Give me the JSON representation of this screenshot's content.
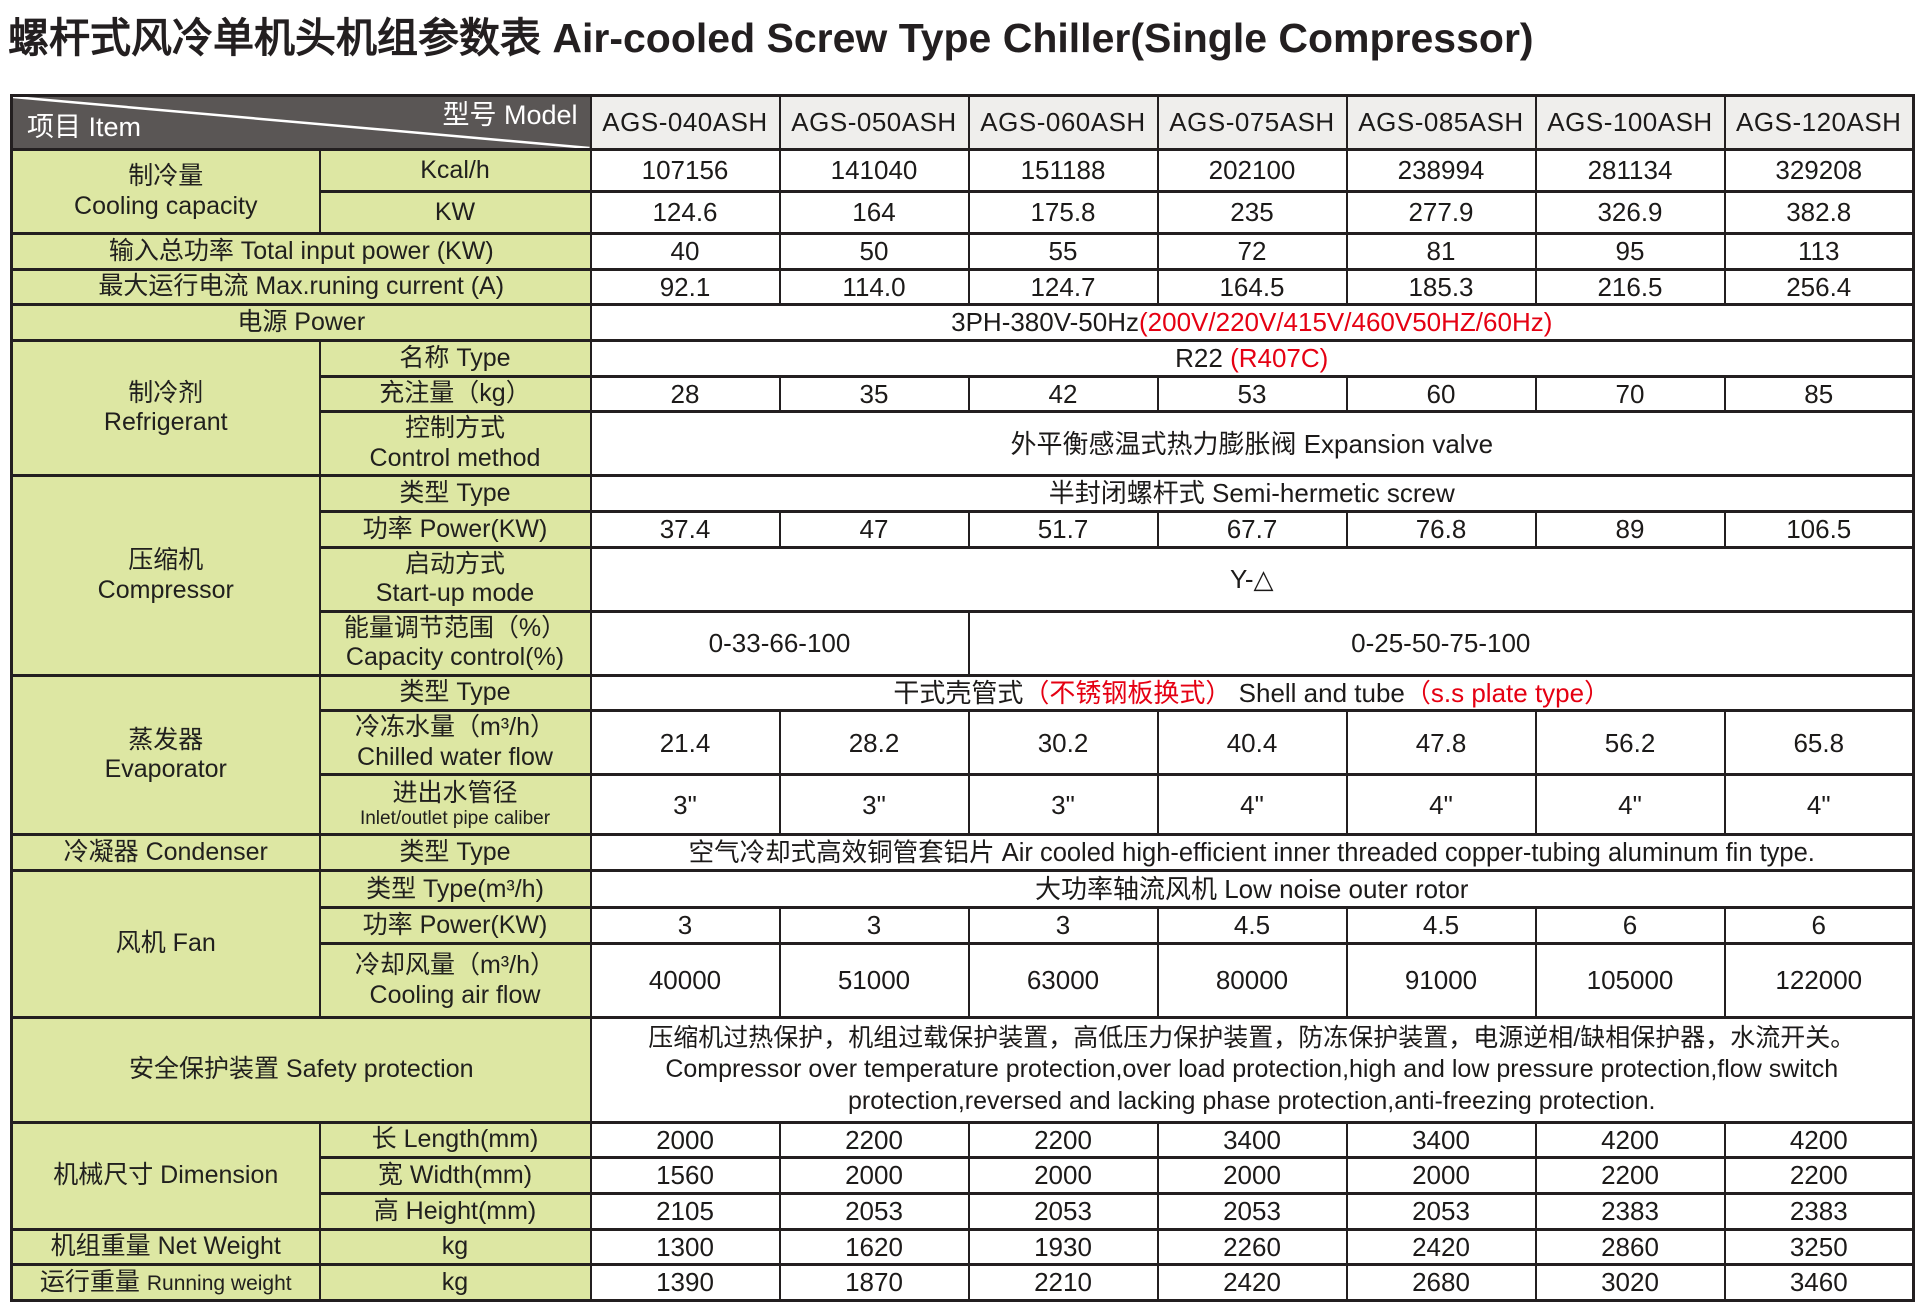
{
  "title": "螺杆式风冷单机头机组参数表 Air-cooled Screw Type Chiller(Single Compressor)",
  "colors": {
    "header_dark": "#5a5655",
    "label_green": "#dde7a3",
    "model_gray": "#efeeec",
    "accent_red": "#e50012",
    "border": "#231f20"
  },
  "table": {
    "header": {
      "model_label": "型号  Model",
      "item_label": "项目  Item",
      "models": [
        "AGS-040ASH",
        "AGS-050ASH",
        "AGS-060ASH",
        "AGS-075ASH",
        "AGS-085ASH",
        "AGS-100ASH",
        "AGS-120ASH"
      ]
    },
    "rows": [
      {
        "name": "cooling-kcal",
        "cells": [
          {
            "kind": "group",
            "rowspan": 2,
            "name": "cooling-capacity-label",
            "lines": [
              "制冷量",
              "Cooling capacity"
            ]
          },
          {
            "kind": "sub",
            "name": "kcal-unit-label",
            "text": "Kcal/h"
          },
          {
            "kind": "value",
            "text": "107156"
          },
          {
            "kind": "value",
            "text": "141040"
          },
          {
            "kind": "value",
            "text": "151188"
          },
          {
            "kind": "value",
            "text": "202100"
          },
          {
            "kind": "value",
            "text": "238994"
          },
          {
            "kind": "value",
            "text": "281134"
          },
          {
            "kind": "value",
            "text": "329208"
          }
        ]
      },
      {
        "name": "cooling-kw",
        "cells": [
          {
            "kind": "sub",
            "name": "kw-unit-label",
            "text": "KW"
          },
          {
            "kind": "value",
            "text": "124.6"
          },
          {
            "kind": "value",
            "text": "164"
          },
          {
            "kind": "value",
            "text": "175.8"
          },
          {
            "kind": "value",
            "text": "235"
          },
          {
            "kind": "value",
            "text": "277.9"
          },
          {
            "kind": "value",
            "text": "326.9"
          },
          {
            "kind": "value",
            "text": "382.8"
          }
        ]
      },
      {
        "name": "input-power",
        "cells": [
          {
            "kind": "group",
            "colspan": 2,
            "name": "total-input-power-label",
            "text": "输入总功率  Total input power (KW)"
          },
          {
            "kind": "value",
            "text": "40"
          },
          {
            "kind": "value",
            "text": "50"
          },
          {
            "kind": "value",
            "text": "55"
          },
          {
            "kind": "value",
            "text": "72"
          },
          {
            "kind": "value",
            "text": "81"
          },
          {
            "kind": "value",
            "text": "95"
          },
          {
            "kind": "value",
            "text": "113"
          }
        ]
      },
      {
        "name": "max-current",
        "cells": [
          {
            "kind": "group",
            "colspan": 2,
            "name": "max-running-current-label",
            "text": "最大运行电流  Max.runing current (A)"
          },
          {
            "kind": "value",
            "text": "92.1"
          },
          {
            "kind": "value",
            "text": "114.0"
          },
          {
            "kind": "value",
            "text": "124.7"
          },
          {
            "kind": "value",
            "text": "164.5"
          },
          {
            "kind": "value",
            "text": "185.3"
          },
          {
            "kind": "value",
            "text": "216.5"
          },
          {
            "kind": "value",
            "text": "256.4"
          }
        ]
      },
      {
        "name": "power-supply",
        "cells": [
          {
            "kind": "group",
            "colspan": 2,
            "name": "power-supply-label",
            "text": "电源  Power"
          },
          {
            "kind": "value",
            "colspan": 7,
            "name": "power-supply-value",
            "segments": [
              {
                "t": "3PH-380V-50Hz"
              },
              {
                "t": "(200V/220V/415V/460V50HZ/60Hz)",
                "red": true
              }
            ]
          }
        ]
      },
      {
        "name": "refrigerant-name",
        "cells": [
          {
            "kind": "group",
            "rowspan": 3,
            "name": "refrigerant-label",
            "lines": [
              "制冷剂",
              "Refrigerant"
            ]
          },
          {
            "kind": "sub",
            "name": "refrigerant-type-label",
            "text": "名称  Type"
          },
          {
            "kind": "value",
            "colspan": 7,
            "name": "refrigerant-type-value",
            "segments": [
              {
                "t": "R22 "
              },
              {
                "t": "(R407C)",
                "red": true
              }
            ]
          }
        ]
      },
      {
        "name": "refrigerant-charge",
        "cells": [
          {
            "kind": "sub",
            "name": "charge-label",
            "text": "充注量（kg）"
          },
          {
            "kind": "value",
            "text": "28"
          },
          {
            "kind": "value",
            "text": "35"
          },
          {
            "kind": "value",
            "text": "42"
          },
          {
            "kind": "value",
            "text": "53"
          },
          {
            "kind": "value",
            "text": "60"
          },
          {
            "kind": "value",
            "text": "70"
          },
          {
            "kind": "value",
            "text": "85"
          }
        ]
      },
      {
        "name": "control-method",
        "cells": [
          {
            "kind": "sub",
            "name": "control-method-label",
            "lines": [
              "控制方式",
              "Control method"
            ]
          },
          {
            "kind": "value",
            "colspan": 7,
            "name": "control-method-value",
            "text": "外平衡感温式热力膨胀阀  Expansion valve"
          }
        ]
      },
      {
        "name": "compressor-type",
        "cells": [
          {
            "kind": "group",
            "rowspan": 4,
            "name": "compressor-label",
            "lines": [
              "压缩机",
              "Compressor"
            ]
          },
          {
            "kind": "sub",
            "name": "compressor-type-label",
            "text": "类型  Type"
          },
          {
            "kind": "value",
            "colspan": 7,
            "name": "compressor-type-value",
            "text": "半封闭螺杆式  Semi-hermetic screw"
          }
        ]
      },
      {
        "name": "compressor-power",
        "cells": [
          {
            "kind": "sub",
            "name": "compressor-power-label",
            "text": "功率  Power(KW)"
          },
          {
            "kind": "value",
            "text": "37.4"
          },
          {
            "kind": "value",
            "text": "47"
          },
          {
            "kind": "value",
            "text": "51.7"
          },
          {
            "kind": "value",
            "text": "67.7"
          },
          {
            "kind": "value",
            "text": "76.8"
          },
          {
            "kind": "value",
            "text": "89"
          },
          {
            "kind": "value",
            "text": "106.5"
          }
        ]
      },
      {
        "name": "startup-mode",
        "cells": [
          {
            "kind": "sub",
            "name": "startup-mode-label",
            "lines": [
              "启动方式",
              "Start-up mode"
            ]
          },
          {
            "kind": "value",
            "colspan": 7,
            "name": "startup-mode-value",
            "text": "Y-△"
          }
        ]
      },
      {
        "name": "capacity-control",
        "cells": [
          {
            "kind": "sub",
            "name": "capacity-control-label",
            "lines": [
              "能量调节范围（%）",
              "Capacity control(%)"
            ]
          },
          {
            "kind": "value",
            "colspan": 2,
            "name": "capacity-control-small",
            "text": "0-33-66-100"
          },
          {
            "kind": "value",
            "colspan": 5,
            "name": "capacity-control-large",
            "text": "0-25-50-75-100"
          }
        ]
      },
      {
        "name": "evaporator-type",
        "cells": [
          {
            "kind": "group",
            "rowspan": 3,
            "name": "evaporator-label",
            "lines": [
              "蒸发器",
              "Evaporator"
            ]
          },
          {
            "kind": "sub",
            "name": "evaporator-type-label",
            "text": "类型  Type"
          },
          {
            "kind": "value",
            "colspan": 7,
            "name": "evaporator-type-value",
            "segments": [
              {
                "t": "干式壳管式"
              },
              {
                "t": "（不锈钢板换式）",
                "red": true
              },
              {
                "t": " Shell and tube"
              },
              {
                "t": "（s.s plate type）",
                "red": true
              }
            ]
          }
        ]
      },
      {
        "name": "chilled-water-flow",
        "cells": [
          {
            "kind": "sub",
            "name": "chilled-water-flow-label",
            "lines": [
              "冷冻水量（m³/h）",
              "Chilled water flow"
            ]
          },
          {
            "kind": "value",
            "text": "21.4"
          },
          {
            "kind": "value",
            "text": "28.2"
          },
          {
            "kind": "value",
            "text": "30.2"
          },
          {
            "kind": "value",
            "text": "40.4"
          },
          {
            "kind": "value",
            "text": "47.8"
          },
          {
            "kind": "value",
            "text": "56.2"
          },
          {
            "kind": "value",
            "text": "65.8"
          }
        ]
      },
      {
        "name": "pipe-caliber",
        "cells": [
          {
            "kind": "sub",
            "name": "pipe-caliber-label",
            "lines": [
              "进出水管径",
              "Inlet/outlet pipe caliber"
            ]
          },
          {
            "kind": "value",
            "text": "3\""
          },
          {
            "kind": "value",
            "text": "3\""
          },
          {
            "kind": "value",
            "text": "3\""
          },
          {
            "kind": "value",
            "text": "4\""
          },
          {
            "kind": "value",
            "text": "4\""
          },
          {
            "kind": "value",
            "text": "4\""
          },
          {
            "kind": "value",
            "text": "4\""
          }
        ]
      },
      {
        "name": "condenser-type",
        "cells": [
          {
            "kind": "group",
            "name": "condenser-label",
            "text": "冷凝器  Condenser"
          },
          {
            "kind": "sub",
            "name": "condenser-type-label",
            "text": "类型  Type"
          },
          {
            "kind": "value",
            "colspan": 7,
            "name": "condenser-type-value",
            "text": "空气冷却式高效铜管套铝片  Air cooled high-efficient inner threaded copper-tubing aluminum fin type."
          }
        ]
      },
      {
        "name": "fan-type",
        "cells": [
          {
            "kind": "group",
            "rowspan": 3,
            "name": "fan-label",
            "text": "风机  Fan"
          },
          {
            "kind": "sub",
            "name": "fan-type-label",
            "text": "类型  Type(m³/h)"
          },
          {
            "kind": "value",
            "colspan": 7,
            "name": "fan-type-value",
            "text": "大功率轴流风机  Low noise outer rotor"
          }
        ]
      },
      {
        "name": "fan-power",
        "cells": [
          {
            "kind": "sub",
            "name": "fan-power-label",
            "text": "功率  Power(KW)"
          },
          {
            "kind": "value",
            "text": "3"
          },
          {
            "kind": "value",
            "text": "3"
          },
          {
            "kind": "value",
            "text": "3"
          },
          {
            "kind": "value",
            "text": "4.5"
          },
          {
            "kind": "value",
            "text": "4.5"
          },
          {
            "kind": "value",
            "text": "6"
          },
          {
            "kind": "value",
            "text": "6"
          }
        ]
      },
      {
        "name": "cooling-air-flow",
        "cells": [
          {
            "kind": "sub",
            "name": "cooling-air-flow-label",
            "lines": [
              "冷却风量（m³/h）",
              "Cooling air flow"
            ]
          },
          {
            "kind": "value",
            "text": "40000"
          },
          {
            "kind": "value",
            "text": "51000"
          },
          {
            "kind": "value",
            "text": "63000"
          },
          {
            "kind": "value",
            "text": "80000"
          },
          {
            "kind": "value",
            "text": "91000"
          },
          {
            "kind": "value",
            "text": "105000"
          },
          {
            "kind": "value",
            "text": "122000"
          }
        ]
      },
      {
        "name": "safety",
        "cells": [
          {
            "kind": "group",
            "colspan": 2,
            "name": "safety-protection-label",
            "text": "安全保护装置  Safety protection"
          },
          {
            "kind": "value",
            "colspan": 7,
            "name": "safety-protection-value",
            "lines": [
              "压缩机过热保护，机组过载保护装置，高低压力保护装置，防冻保护装置，电源逆相/缺相保护器，水流开关。",
              "Compressor over temperature protection,over load protection,high and low pressure protection,flow switch protection,reversed and lacking phase protection,anti-freezing protection."
            ]
          }
        ]
      },
      {
        "name": "dim-length",
        "cells": [
          {
            "kind": "group",
            "rowspan": 3,
            "name": "dimension-label",
            "text": "机械尺寸  Dimension"
          },
          {
            "kind": "sub",
            "name": "length-label",
            "text": "长  Length(mm)"
          },
          {
            "kind": "value",
            "text": "2000"
          },
          {
            "kind": "value",
            "text": "2200"
          },
          {
            "kind": "value",
            "text": "2200"
          },
          {
            "kind": "value",
            "text": "3400"
          },
          {
            "kind": "value",
            "text": "3400"
          },
          {
            "kind": "value",
            "text": "4200"
          },
          {
            "kind": "value",
            "text": "4200"
          }
        ]
      },
      {
        "name": "dim-width",
        "cells": [
          {
            "kind": "sub",
            "name": "width-label",
            "text": "宽  Width(mm)"
          },
          {
            "kind": "value",
            "text": "1560"
          },
          {
            "kind": "value",
            "text": "2000"
          },
          {
            "kind": "value",
            "text": "2000"
          },
          {
            "kind": "value",
            "text": "2000"
          },
          {
            "kind": "value",
            "text": "2000"
          },
          {
            "kind": "value",
            "text": "2200"
          },
          {
            "kind": "value",
            "text": "2200"
          }
        ]
      },
      {
        "name": "dim-height",
        "cells": [
          {
            "kind": "sub",
            "name": "height-label",
            "text": "高  Height(mm)"
          },
          {
            "kind": "value",
            "text": "2105"
          },
          {
            "kind": "value",
            "text": "2053"
          },
          {
            "kind": "value",
            "text": "2053"
          },
          {
            "kind": "value",
            "text": "2053"
          },
          {
            "kind": "value",
            "text": "2053"
          },
          {
            "kind": "value",
            "text": "2383"
          },
          {
            "kind": "value",
            "text": "2383"
          }
        ]
      },
      {
        "name": "net-weight",
        "cells": [
          {
            "kind": "group",
            "name": "net-weight-label",
            "text": "机组重量  Net Weight"
          },
          {
            "kind": "sub",
            "name": "net-weight-unit",
            "text": "kg"
          },
          {
            "kind": "value",
            "text": "1300"
          },
          {
            "kind": "value",
            "text": "1620"
          },
          {
            "kind": "value",
            "text": "1930"
          },
          {
            "kind": "value",
            "text": "2260"
          },
          {
            "kind": "value",
            "text": "2420"
          },
          {
            "kind": "value",
            "text": "2860"
          },
          {
            "kind": "value",
            "text": "3250"
          }
        ]
      },
      {
        "name": "running-weight",
        "cells": [
          {
            "kind": "group",
            "name": "running-weight-label",
            "segments": [
              {
                "t": "运行重量  "
              },
              {
                "t": "Running weight"
              }
            ]
          },
          {
            "kind": "sub",
            "name": "running-weight-unit",
            "text": "kg"
          },
          {
            "kind": "value",
            "text": "1390"
          },
          {
            "kind": "value",
            "text": "1870"
          },
          {
            "kind": "value",
            "text": "2210"
          },
          {
            "kind": "value",
            "text": "2420"
          },
          {
            "kind": "value",
            "text": "2680"
          },
          {
            "kind": "value",
            "text": "3020"
          },
          {
            "kind": "value",
            "text": "3460"
          }
        ]
      }
    ]
  }
}
